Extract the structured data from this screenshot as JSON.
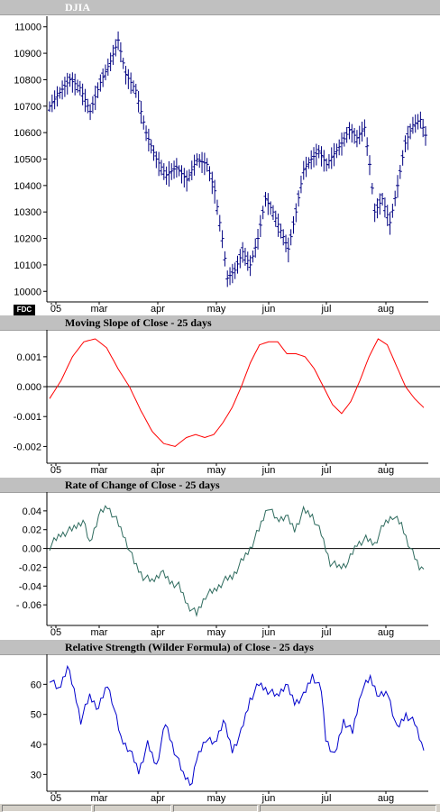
{
  "panes": [
    {
      "id": "p0",
      "title": "DJIA"
    },
    {
      "id": "p1",
      "title": "Moving Slope of Close - 25 days"
    },
    {
      "id": "p2",
      "title": "Rate of Change of Close - 25 days"
    },
    {
      "id": "p3",
      "title": "Relative Strength (Wilder Formula) of Close - 25 days"
    }
  ],
  "badge": "FDC",
  "x_labels": [
    "05",
    "mar",
    "apr",
    "may",
    "jun",
    "jul",
    "aug"
  ],
  "chart_data": [
    {
      "type": "ohlc",
      "title": "DJIA",
      "ylim": [
        9960,
        11040
      ],
      "yticks": [
        10000,
        10100,
        10200,
        10300,
        10400,
        10500,
        10600,
        10700,
        10800,
        10900,
        11000
      ],
      "color": "#000080",
      "series": [
        {
          "name": "",
          "days": 148,
          "anchors": [
            [
              0,
              10700
            ],
            [
              3,
              10740
            ],
            [
              8,
              10800
            ],
            [
              12,
              10770
            ],
            [
              16,
              10680
            ],
            [
              20,
              10790
            ],
            [
              24,
              10870
            ],
            [
              27,
              10950
            ],
            [
              30,
              10820
            ],
            [
              34,
              10760
            ],
            [
              38,
              10600
            ],
            [
              42,
              10500
            ],
            [
              46,
              10440
            ],
            [
              50,
              10470
            ],
            [
              54,
              10420
            ],
            [
              58,
              10500
            ],
            [
              62,
              10480
            ],
            [
              65,
              10380
            ],
            [
              68,
              10200
            ],
            [
              70,
              10050
            ],
            [
              73,
              10080
            ],
            [
              76,
              10150
            ],
            [
              79,
              10100
            ],
            [
              82,
              10200
            ],
            [
              85,
              10350
            ],
            [
              88,
              10300
            ],
            [
              91,
              10230
            ],
            [
              94,
              10160
            ],
            [
              97,
              10300
            ],
            [
              100,
              10460
            ],
            [
              103,
              10500
            ],
            [
              106,
              10530
            ],
            [
              109,
              10480
            ],
            [
              112,
              10520
            ],
            [
              115,
              10560
            ],
            [
              118,
              10610
            ],
            [
              121,
              10580
            ],
            [
              124,
              10620
            ],
            [
              126,
              10480
            ],
            [
              128,
              10300
            ],
            [
              131,
              10350
            ],
            [
              134,
              10260
            ],
            [
              137,
              10400
            ],
            [
              140,
              10560
            ],
            [
              143,
              10630
            ],
            [
              146,
              10650
            ],
            [
              148,
              10590
            ]
          ]
        }
      ]
    },
    {
      "type": "line",
      "title": "Moving Slope of Close - 25 days",
      "ylim": [
        -0.0025,
        0.0019
      ],
      "yticks": [
        -0.002,
        -0.001,
        0.0,
        0.001
      ],
      "ytick_labels": [
        "-0.002",
        "-0.001",
        "0.000",
        "0.001"
      ],
      "zero_line": true,
      "color": "#ff0000",
      "series": [
        {
          "name": "",
          "points": [
            [
              0,
              -0.0004
            ],
            [
              5,
              0.0002
            ],
            [
              10,
              0.001
            ],
            [
              15,
              0.0015
            ],
            [
              20,
              0.0016
            ],
            [
              25,
              0.0013
            ],
            [
              30,
              0.0006
            ],
            [
              35,
              0.0
            ],
            [
              40,
              -0.0008
            ],
            [
              45,
              -0.0015
            ],
            [
              50,
              -0.0019
            ],
            [
              55,
              -0.002
            ],
            [
              60,
              -0.0017
            ],
            [
              64,
              -0.0016
            ],
            [
              68,
              -0.0017
            ],
            [
              72,
              -0.0016
            ],
            [
              76,
              -0.0012
            ],
            [
              80,
              -0.0007
            ],
            [
              84,
              0.0
            ],
            [
              88,
              0.0008
            ],
            [
              92,
              0.0014
            ],
            [
              96,
              0.0015
            ],
            [
              100,
              0.0015
            ],
            [
              104,
              0.0011
            ],
            [
              108,
              0.0011
            ],
            [
              112,
              0.001
            ],
            [
              116,
              0.0006
            ],
            [
              120,
              0.0
            ],
            [
              124,
              -0.0006
            ],
            [
              128,
              -0.0009
            ],
            [
              132,
              -0.0005
            ],
            [
              136,
              0.0002
            ],
            [
              140,
              0.001
            ],
            [
              144,
              0.0016
            ],
            [
              148,
              0.0014
            ],
            [
              152,
              0.0007
            ],
            [
              156,
              0.0
            ],
            [
              160,
              -0.0004
            ],
            [
              164,
              -0.0007
            ]
          ]
        }
      ]
    },
    {
      "type": "line",
      "title": "Rate of Change of Close - 25 days",
      "ylim": [
        -0.08,
        0.06
      ],
      "yticks": [
        0.04,
        0.02,
        0.0,
        -0.02,
        -0.04,
        -0.06
      ],
      "ytick_labels": [
        "0.04",
        "0.02",
        "0.00",
        "-0.02",
        "-0.04",
        "- 0.06"
      ],
      "zero_line": true,
      "color": "#2e6b5e",
      "series": [
        {
          "name": "",
          "points": [
            [
              0,
              0.002
            ],
            [
              5,
              0.015
            ],
            [
              10,
              0.02
            ],
            [
              15,
              0.03
            ],
            [
              18,
              0.005
            ],
            [
              22,
              0.035
            ],
            [
              26,
              0.045
            ],
            [
              30,
              0.03
            ],
            [
              34,
              0.01
            ],
            [
              38,
              -0.015
            ],
            [
              42,
              -0.03
            ],
            [
              46,
              -0.035
            ],
            [
              50,
              -0.025
            ],
            [
              54,
              -0.035
            ],
            [
              58,
              -0.04
            ],
            [
              62,
              -0.06
            ],
            [
              66,
              -0.07
            ],
            [
              70,
              -0.05
            ],
            [
              74,
              -0.045
            ],
            [
              78,
              -0.035
            ],
            [
              82,
              -0.03
            ],
            [
              86,
              -0.015
            ],
            [
              90,
              0.0
            ],
            [
              94,
              0.02
            ],
            [
              98,
              0.045
            ],
            [
              102,
              0.03
            ],
            [
              106,
              0.035
            ],
            [
              110,
              0.02
            ],
            [
              114,
              0.04
            ],
            [
              118,
              0.035
            ],
            [
              122,
              0.015
            ],
            [
              126,
              -0.015
            ],
            [
              130,
              -0.02
            ],
            [
              134,
              -0.015
            ],
            [
              138,
              0.005
            ],
            [
              142,
              0.01
            ],
            [
              146,
              0.005
            ],
            [
              150,
              0.025
            ],
            [
              154,
              0.035
            ],
            [
              158,
              0.025
            ],
            [
              162,
              0.0
            ],
            [
              166,
              -0.02
            ],
            [
              168,
              -0.022
            ]
          ]
        }
      ]
    },
    {
      "type": "line",
      "title": "Relative Strength (Wilder Formula) of Close - 25 days",
      "ylim": [
        25,
        70
      ],
      "yticks": [
        30,
        40,
        50,
        60
      ],
      "ytick_labels": [
        "30",
        "40",
        "50",
        "60"
      ],
      "zero_line": false,
      "color": "#0000cc",
      "series": [
        {
          "name": "",
          "points": [
            [
              0,
              62
            ],
            [
              4,
              58
            ],
            [
              8,
              66
            ],
            [
              12,
              55
            ],
            [
              14,
              48
            ],
            [
              18,
              56
            ],
            [
              22,
              52
            ],
            [
              26,
              60
            ],
            [
              28,
              55
            ],
            [
              32,
              42
            ],
            [
              36,
              38
            ],
            [
              40,
              31
            ],
            [
              44,
              40
            ],
            [
              48,
              33
            ],
            [
              52,
              47
            ],
            [
              56,
              38
            ],
            [
              60,
              30
            ],
            [
              64,
              27
            ],
            [
              66,
              35
            ],
            [
              70,
              42
            ],
            [
              74,
              40
            ],
            [
              78,
              48
            ],
            [
              82,
              38
            ],
            [
              86,
              44
            ],
            [
              90,
              55
            ],
            [
              94,
              60
            ],
            [
              98,
              58
            ],
            [
              102,
              56
            ],
            [
              106,
              60
            ],
            [
              110,
              54
            ],
            [
              114,
              56
            ],
            [
              118,
              63
            ],
            [
              122,
              58
            ],
            [
              124,
              42
            ],
            [
              128,
              36
            ],
            [
              132,
              48
            ],
            [
              136,
              44
            ],
            [
              140,
              58
            ],
            [
              144,
              62
            ],
            [
              148,
              56
            ],
            [
              152,
              57
            ],
            [
              156,
              45
            ],
            [
              160,
              50
            ],
            [
              164,
              47
            ],
            [
              168,
              38
            ]
          ]
        }
      ]
    }
  ]
}
